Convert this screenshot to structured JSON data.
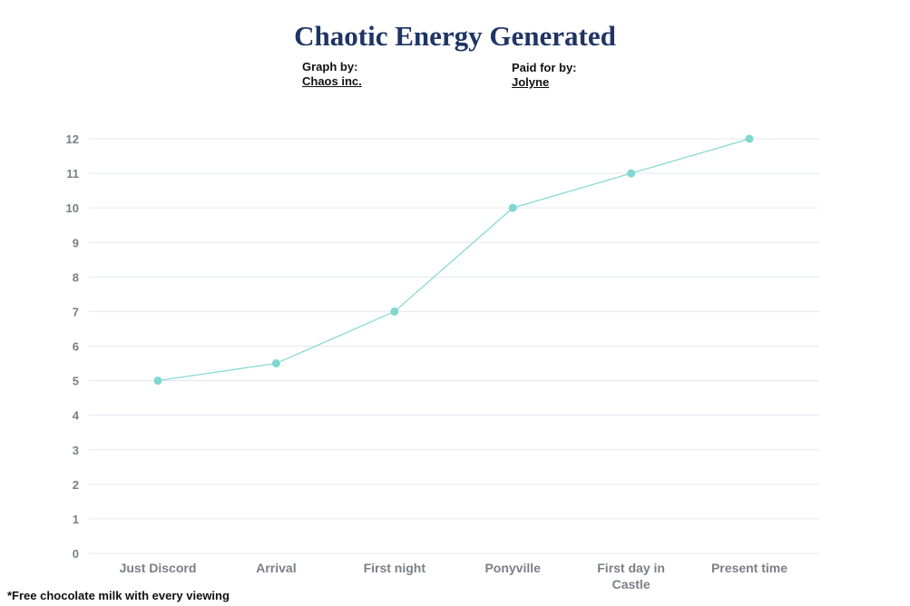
{
  "credits": {
    "graph_label": "Graph by:",
    "graph_name": "Chaos inc.",
    "paid_label": "Paid for by:",
    "paid_name": "Jolyne"
  },
  "footnote": "*Free chocolate milk with every viewing",
  "colors": {
    "title": "#1f3566",
    "series": "#7fd8cf",
    "grid": "#e3e7ee",
    "tick_text": "#7a7f87"
  },
  "chart_data": {
    "type": "line",
    "title": "Chaotic Energy Generated",
    "xlabel": "",
    "ylabel": "",
    "categories": [
      "Just Discord",
      "Arrival",
      "First night",
      "Ponyville",
      "First day in Castle",
      "Present time"
    ],
    "series": [
      {
        "values": [
          5,
          5.5,
          7,
          10,
          11,
          12
        ]
      }
    ],
    "ylim": [
      0,
      12
    ],
    "yticks": [
      "0",
      "1",
      "2",
      "3",
      "4",
      "5",
      "6",
      "7",
      "8",
      "9",
      "10",
      "11",
      "12"
    ],
    "grid": true,
    "legend": "none"
  }
}
